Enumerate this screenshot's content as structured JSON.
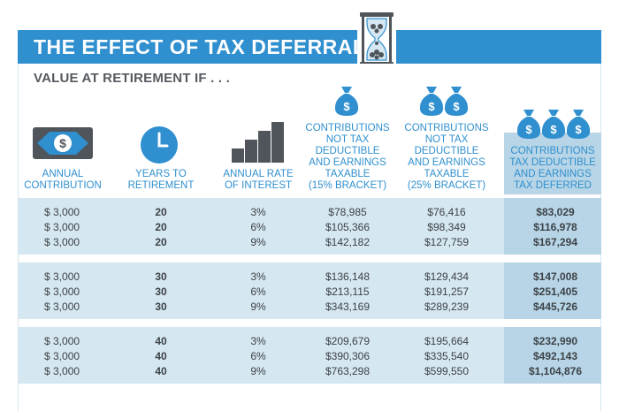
{
  "header": {
    "title": "THE EFFECT OF TAX DEFERRAL",
    "subtitle": "VALUE AT RETIREMENT IF . . ."
  },
  "colors": {
    "accent": "#2f8fcf",
    "band": "#d5e7f1",
    "highlight_band": "#b7d5e6",
    "icon_dark": "#4f555a"
  },
  "icons": {
    "contribution": "dollar-bill-icon",
    "years": "clock-icon",
    "rate": "bar-chart-icon",
    "taxable_15": "money-bag-icon",
    "taxable_25": "two-money-bags-icon",
    "deferred": "three-money-bags-icon",
    "title": "hourglass-money-icon"
  },
  "chart_data": {
    "type": "table",
    "columns": [
      [
        "ANNUAL",
        "CONTRIBUTION"
      ],
      [
        "YEARS TO",
        "RETIREMENT"
      ],
      [
        "ANNUAL RATE",
        "OF INTEREST"
      ],
      [
        "CONTRIBUTIONS",
        "NOT TAX",
        "DEDUCTIBLE",
        "AND EARNINGS",
        "TAXABLE",
        "(15% BRACKET)"
      ],
      [
        "CONTRIBUTIONS",
        "NOT TAX",
        "DEDUCTIBLE",
        "AND EARNINGS",
        "TAXABLE",
        "(25% BRACKET)"
      ],
      [
        "CONTRIBUTIONS",
        "TAX DEDUCTIBLE",
        "AND EARNINGS",
        "TAX DEFERRED"
      ]
    ],
    "groups": [
      {
        "rows": [
          [
            "$ 3,000",
            "20",
            "3%",
            "$78,985",
            "$76,416",
            "$83,029"
          ],
          [
            "$ 3,000",
            "20",
            "6%",
            "$105,366",
            "$98,349",
            "$116,978"
          ],
          [
            "$ 3,000",
            "20",
            "9%",
            "$142,182",
            "$127,759",
            "$167,294"
          ]
        ]
      },
      {
        "rows": [
          [
            "$ 3,000",
            "30",
            "3%",
            "$136,148",
            "$129,434",
            "$147,008"
          ],
          [
            "$ 3,000",
            "30",
            "6%",
            "$213,115",
            "$191,257",
            "$251,405"
          ],
          [
            "$ 3,000",
            "30",
            "9%",
            "$343,169",
            "$289,239",
            "$445,726"
          ]
        ]
      },
      {
        "rows": [
          [
            "$ 3,000",
            "40",
            "3%",
            "$209,679",
            "$195,664",
            "$232,990"
          ],
          [
            "$ 3,000",
            "40",
            "6%",
            "$390,306",
            "$335,540",
            "$492,143"
          ],
          [
            "$ 3,000",
            "40",
            "9%",
            "$763,298",
            "$599,550",
            "$1,104,876"
          ]
        ]
      }
    ]
  }
}
